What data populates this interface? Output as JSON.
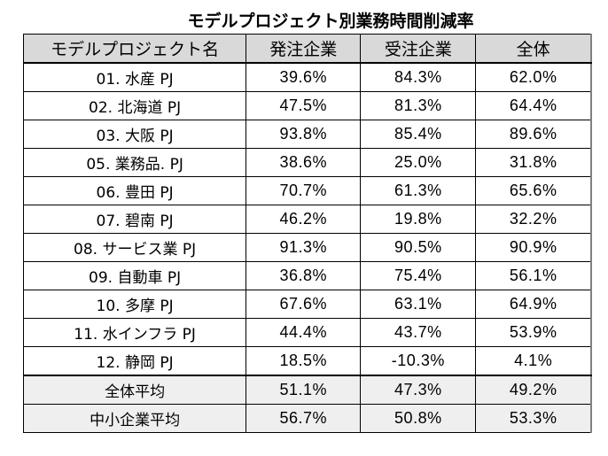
{
  "title": "モデルプロジェクト別業務時間削減率",
  "table": {
    "headers": [
      "モデルプロジェクト名",
      "発注企業",
      "受注企業",
      "全体"
    ],
    "rows": [
      {
        "name": "01. 水産 PJ",
        "ordering": "39.6%",
        "receiving": "84.3%",
        "overall": "62.0%"
      },
      {
        "name": "02. 北海道 PJ",
        "ordering": "47.5%",
        "receiving": "81.3%",
        "overall": "64.4%"
      },
      {
        "name": "03. 大阪 PJ",
        "ordering": "93.8%",
        "receiving": "85.4%",
        "overall": "89.6%"
      },
      {
        "name": "05. 業務品. PJ",
        "ordering": "38.6%",
        "receiving": "25.0%",
        "overall": "31.8%"
      },
      {
        "name": "06. 豊田 PJ",
        "ordering": "70.7%",
        "receiving": "61.3%",
        "overall": "65.6%"
      },
      {
        "name": "07. 碧南 PJ",
        "ordering": "46.2%",
        "receiving": "19.8%",
        "overall": "32.2%"
      },
      {
        "name": "08. サービス業 PJ",
        "ordering": "91.3%",
        "receiving": "90.5%",
        "overall": "90.9%"
      },
      {
        "name": "09. 自動車 PJ",
        "ordering": "36.8%",
        "receiving": "75.4%",
        "overall": "56.1%"
      },
      {
        "name": "10. 多摩 PJ",
        "ordering": "67.6%",
        "receiving": "63.1%",
        "overall": "64.9%"
      },
      {
        "name": "11. 水インフラ PJ",
        "ordering": "44.4%",
        "receiving": "43.7%",
        "overall": "53.9%"
      },
      {
        "name": "12. 静岡 PJ",
        "ordering": "18.5%",
        "receiving": "-10.3%",
        "overall": "4.1%"
      }
    ],
    "summary": [
      {
        "name": "全体平均",
        "ordering": "51.1%",
        "receiving": "47.3%",
        "overall": "49.2%"
      },
      {
        "name": "中小企業平均",
        "ordering": "56.7%",
        "receiving": "50.8%",
        "overall": "53.3%"
      }
    ]
  },
  "colors": {
    "header_bg": "#d9d9d9",
    "summary_bg": "#efefef",
    "border": "#000000",
    "right_border": "#808080"
  }
}
